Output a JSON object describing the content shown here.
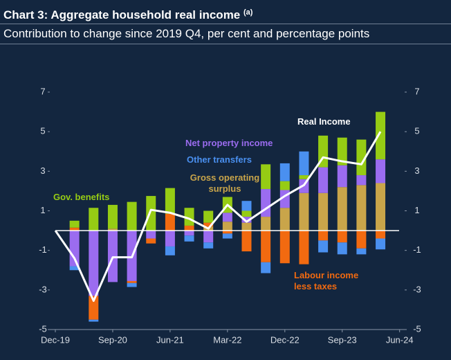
{
  "chart_data": {
    "type": "bar",
    "title": "Chart 3: Aggregate household real income",
    "title_note": "(a)",
    "subtitle": "Contribution to change since 2019 Q4, per cent and percentage points",
    "categories": [
      "Dec-19",
      null,
      null,
      "Sep-20",
      null,
      null,
      "Jun-21",
      null,
      null,
      "Mar-22",
      null,
      null,
      "Dec-22",
      null,
      null,
      "Sep-23",
      null,
      null,
      "Jun-24"
    ],
    "ylim": [
      -5,
      7
    ],
    "yticks": [
      -5,
      -3,
      -1,
      1,
      3,
      5,
      7
    ],
    "y2lim": [
      -5,
      7
    ],
    "y2ticks": [
      -5,
      -3,
      -1,
      1,
      3,
      5,
      7
    ],
    "series": [
      {
        "name": "Gross operating surplus",
        "color": "#c9a54a",
        "values": [
          null,
          0,
          0,
          0.1,
          0,
          0,
          0,
          0,
          0.2,
          0.45,
          0.4,
          0.7,
          1.15,
          1.9,
          1.9,
          2.2,
          2.3,
          2.4,
          null
        ]
      },
      {
        "name": "Net property income",
        "color": "#9b6cf0",
        "values": [
          null,
          -1.8,
          -3.3,
          -2.6,
          -2.55,
          -0.4,
          -0.8,
          -0.25,
          -0.6,
          0.45,
          0.3,
          1.4,
          0.9,
          0.7,
          1.3,
          1.1,
          0.5,
          1.2,
          null
        ]
      },
      {
        "name": "Labour income less taxes",
        "color": "#f26a10",
        "values": [
          null,
          0.15,
          -1.2,
          0,
          -0.1,
          -0.25,
          0.85,
          0.25,
          0.2,
          -0.15,
          -1.05,
          -1.6,
          -1.65,
          -1.7,
          -0.5,
          -0.6,
          -0.9,
          -0.4,
          null
        ]
      },
      {
        "name": "Gov. benefits",
        "color": "#96cc14",
        "values": [
          null,
          0.35,
          1.15,
          1.2,
          1.45,
          1.75,
          1.3,
          0.9,
          0.6,
          0.8,
          0.3,
          1.25,
          0.45,
          0.2,
          1.6,
          1.4,
          1.8,
          2.4,
          null
        ]
      },
      {
        "name": "Other transfers",
        "color": "#4a90f0",
        "values": [
          null,
          -0.2,
          -0.1,
          0,
          -0.2,
          0,
          -0.45,
          -0.3,
          -0.3,
          -0.25,
          0.5,
          -0.55,
          0.9,
          1.2,
          -0.6,
          -0.6,
          -0.3,
          -0.55,
          null
        ]
      },
      {
        "name": "Real Income",
        "type": "line",
        "color": "#ffffff",
        "values": [
          0,
          -1.4,
          -3.55,
          -1.35,
          -1.35,
          1.05,
          0.9,
          0.6,
          0.1,
          1.3,
          0.45,
          1.1,
          1.75,
          2.3,
          3.7,
          3.5,
          3.35,
          5.0,
          null
        ]
      }
    ]
  }
}
